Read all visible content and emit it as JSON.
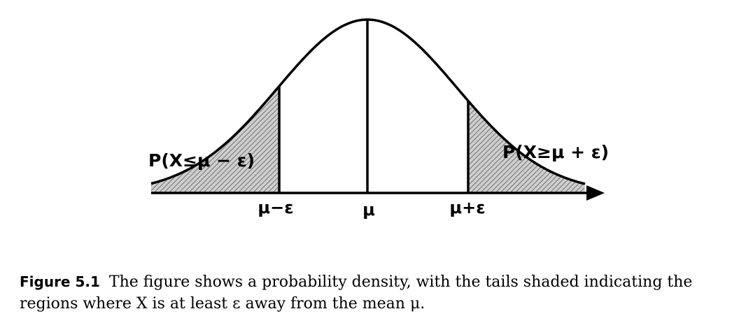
{
  "figure": {
    "left_tail_label": "P(X≤μ − ε)",
    "right_tail_label": "P(X≥μ + ε)",
    "tick_left": "μ−ε",
    "tick_center": "μ",
    "tick_right": "μ+ε"
  },
  "caption": {
    "label": "Figure 5.1",
    "text": "The figure shows a probability density, with the tails shaded indicating the regions where X is at least ε away from the mean μ."
  },
  "colors": {
    "ink": "#000000",
    "tail_fill": "#cfcfcf",
    "hatch": "#7a7a7a"
  }
}
